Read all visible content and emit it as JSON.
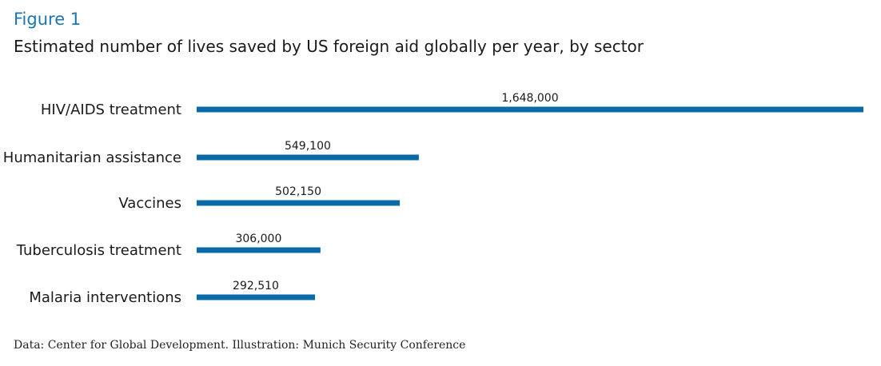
{
  "figure_label": "Figure 1",
  "source": "Data: Center for Global Development. Illustration: Munich Security Conference",
  "colors": {
    "bar": "#0a6aa8",
    "label": "#1a1a1a",
    "figure_label": "#1a75b3"
  },
  "chart_data": {
    "type": "bar",
    "orientation": "horizontal",
    "title": "Estimated number of lives saved by US foreign aid globally per year, by sector",
    "xlabel": "",
    "ylabel": "",
    "grid": false,
    "xlim": [
      0,
      1648000
    ],
    "categories": [
      "HIV/AIDS treatment",
      "Humanitarian assistance",
      "Vaccines",
      "Tuberculosis treatment",
      "Malaria interventions"
    ],
    "values": [
      1648000,
      549100,
      502150,
      306000,
      292510
    ],
    "data_labels": [
      "1,648,000",
      "549,100",
      "502,150",
      "306,000",
      "292,510"
    ]
  }
}
